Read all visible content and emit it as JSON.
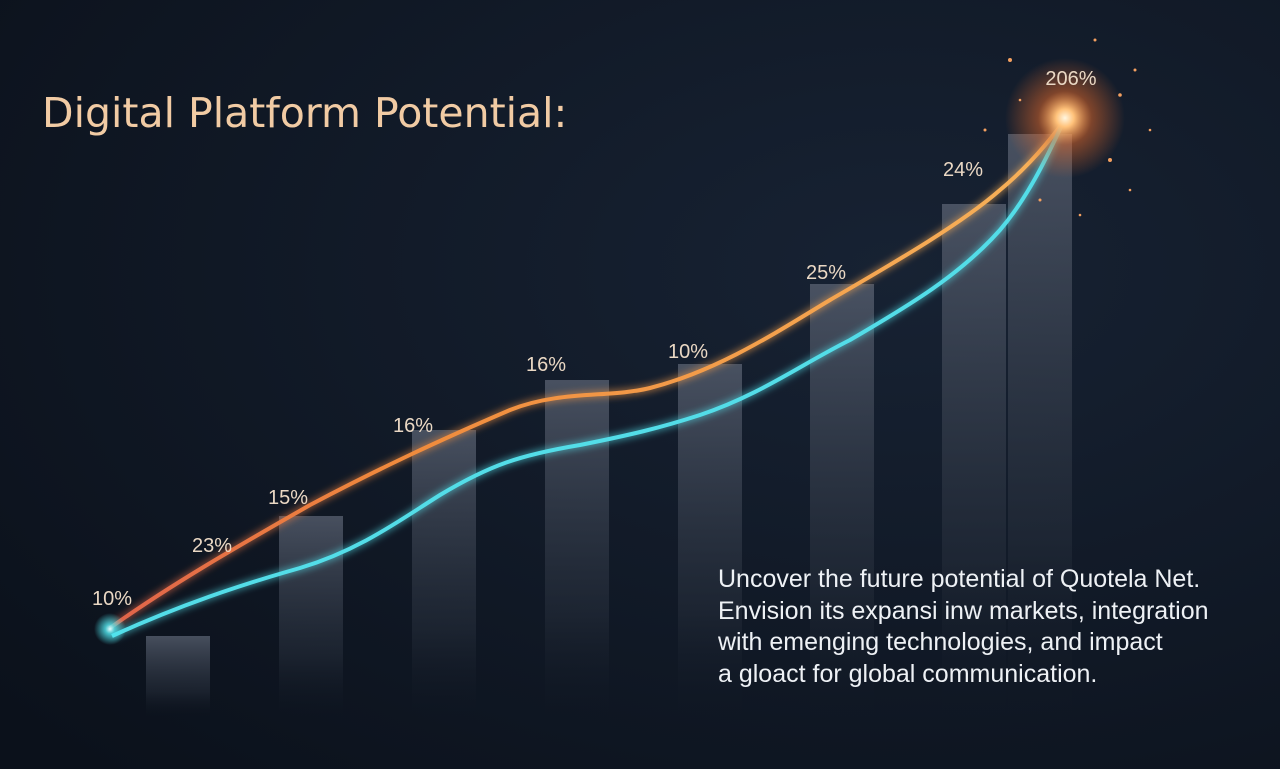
{
  "title": "Digital Platform Potential:",
  "point_labels": [
    "10%",
    "23%",
    "15%",
    "16%",
    "16%",
    "10%",
    "25%",
    "24%",
    "206%"
  ],
  "description": [
    "Uncover the future potential of Quotela Net.",
    "Envision its expansi inw markets, integration",
    "with emenging technologies, and impact",
    "a gloact for global communication."
  ]
}
